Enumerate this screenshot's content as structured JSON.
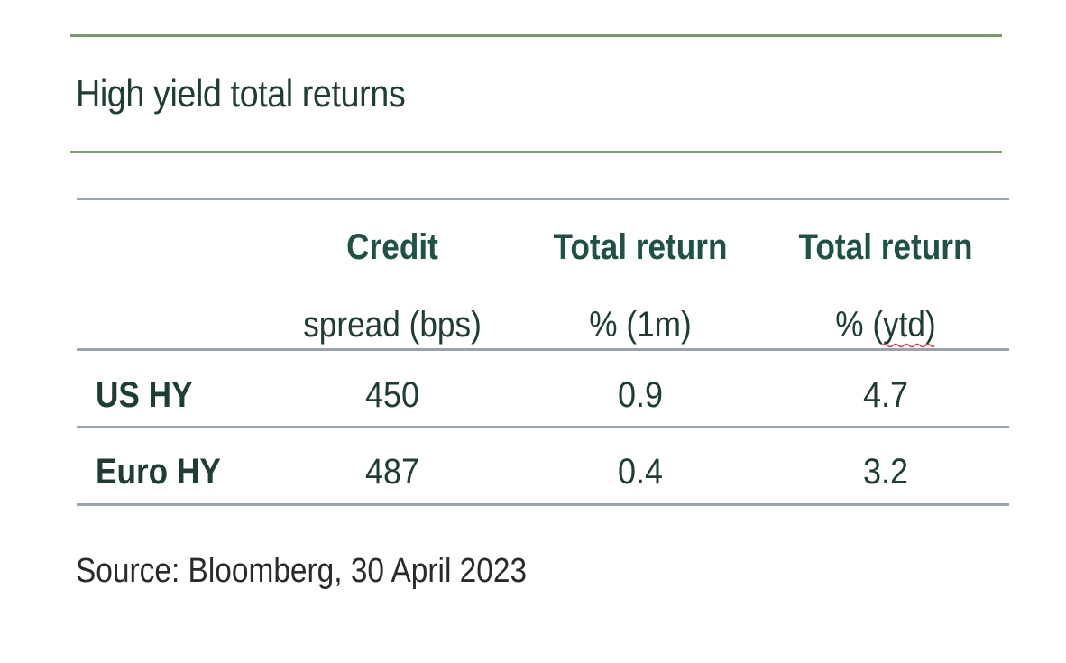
{
  "title": "High yield total returns",
  "columns": [
    {
      "line1": "Credit",
      "line2": "spread (bps)"
    },
    {
      "line1": "Total return",
      "line2": "% (1m)"
    },
    {
      "line1": "Total return",
      "line2": "% (ytd)"
    }
  ],
  "rows": [
    {
      "label": "US HY",
      "values": [
        "450",
        "0.9",
        "4.7"
      ]
    },
    {
      "label": "Euro HY",
      "values": [
        "487",
        "0.4",
        "3.2"
      ]
    }
  ],
  "source": "Source: Bloomberg, 30 April 2023",
  "colors": {
    "title_rule": "#7c9b6a",
    "table_rule": "#9aa2ad",
    "header_text": "#1f5247",
    "body_text": "#1f3d37"
  }
}
